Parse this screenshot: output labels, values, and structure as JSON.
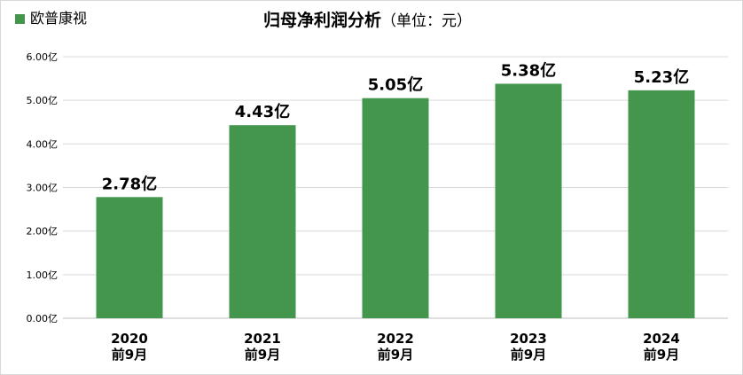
{
  "colors": {
    "bar": "#43964c",
    "grid": "#d9d9d9",
    "axis": "#bfbfbf"
  },
  "chart_data": {
    "type": "bar",
    "title": "归母净利润分析",
    "subtitle": "（单位：元）",
    "legend": {
      "placement": "top-left",
      "entries": [
        "欧普康视"
      ]
    },
    "categories": [
      [
        "2020",
        "前9月"
      ],
      [
        "2021",
        "前9月"
      ],
      [
        "2022",
        "前9月"
      ],
      [
        "2023",
        "前9月"
      ],
      [
        "2024",
        "前9月"
      ]
    ],
    "series": [
      {
        "name": "欧普康视",
        "values": [
          2.78,
          4.43,
          5.05,
          5.38,
          5.23
        ],
        "data_labels": [
          "2.78亿",
          "4.43亿",
          "5.05亿",
          "5.38亿",
          "5.23亿"
        ]
      }
    ],
    "ylim": [
      0,
      6
    ],
    "y_ticks": [
      0,
      1,
      2,
      3,
      4,
      5,
      6
    ],
    "y_tick_labels": [
      "0.00亿",
      "1.00亿",
      "2.00亿",
      "3.00亿",
      "4.00亿",
      "5.00亿",
      "6.00亿"
    ],
    "grid": true
  }
}
